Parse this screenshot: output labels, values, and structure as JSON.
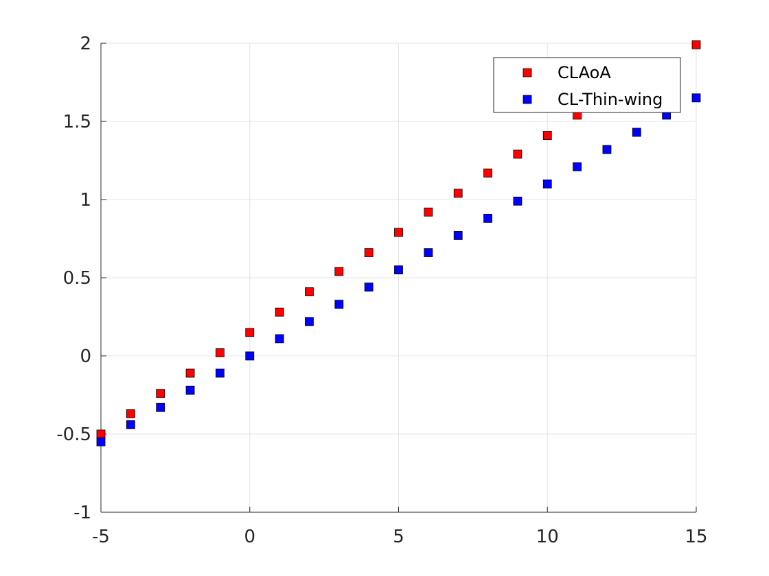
{
  "chart_data": {
    "type": "scatter",
    "title": "",
    "xlabel": "",
    "ylabel": "",
    "xlim": [
      -5,
      15
    ],
    "ylim": [
      -1,
      2
    ],
    "xticks": [
      "-5",
      "0",
      "5",
      "10",
      "15"
    ],
    "yticks": [
      "-1",
      "-0.5",
      "0",
      "0.5",
      "1",
      "1.5",
      "2"
    ],
    "grid": true,
    "legend_position": "top-right",
    "series": [
      {
        "name": "CLAoA",
        "color": "#ff0000",
        "marker": "square",
        "x": [
          -5,
          -4,
          -3,
          -2,
          -1,
          0,
          1,
          2,
          3,
          4,
          5,
          6,
          7,
          8,
          9,
          10,
          11,
          15
        ],
        "y": [
          -0.5,
          -0.37,
          -0.24,
          -0.11,
          0.02,
          0.15,
          0.28,
          0.41,
          0.54,
          0.66,
          0.79,
          0.92,
          1.04,
          1.17,
          1.29,
          1.41,
          1.54,
          1.99
        ]
      },
      {
        "name": "CL-Thin-wing",
        "color": "#0000ff",
        "marker": "square",
        "x": [
          -5,
          -4,
          -3,
          -2,
          -1,
          0,
          1,
          2,
          3,
          4,
          5,
          6,
          7,
          8,
          9,
          10,
          11,
          12,
          13,
          14,
          15
        ],
        "y": [
          -0.55,
          -0.44,
          -0.33,
          -0.22,
          -0.11,
          0.0,
          0.11,
          0.22,
          0.33,
          0.44,
          0.55,
          0.66,
          0.77,
          0.88,
          0.99,
          1.1,
          1.21,
          1.32,
          1.43,
          1.54,
          1.65
        ]
      }
    ]
  }
}
